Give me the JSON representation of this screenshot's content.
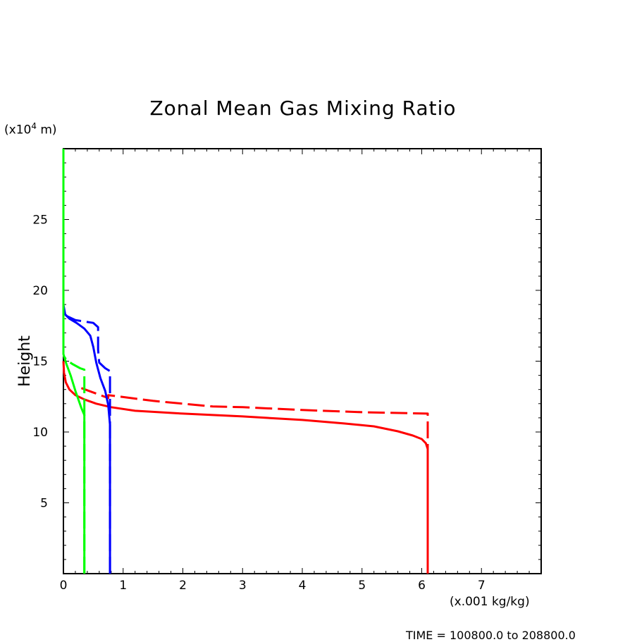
{
  "chart_data": {
    "type": "line",
    "title": "Zonal Mean Gas Mixing Ratio",
    "xlabel": "",
    "ylabel": "Height",
    "x_unit": "(x.001 kg/kg)",
    "y_unit_prefix": "(x10",
    "y_unit_exp": "4",
    "y_unit_suffix": " m)",
    "xlim": [
      0,
      8
    ],
    "ylim": [
      0,
      30
    ],
    "xticks": [
      0,
      1,
      2,
      3,
      4,
      5,
      6,
      7
    ],
    "yticks": [
      5,
      10,
      15,
      20,
      25
    ],
    "grid": false,
    "legend": "none",
    "series": [
      {
        "color": "#ff0000",
        "dash": "solid",
        "points": [
          [
            6.1,
            0
          ],
          [
            6.1,
            8
          ],
          [
            6.1,
            8.8
          ],
          [
            6.07,
            9.2
          ],
          [
            6.0,
            9.5
          ],
          [
            5.85,
            9.75
          ],
          [
            5.6,
            10.05
          ],
          [
            5.2,
            10.4
          ],
          [
            4.7,
            10.6
          ],
          [
            4.0,
            10.85
          ],
          [
            3.0,
            11.1
          ],
          [
            2.0,
            11.3
          ],
          [
            1.2,
            11.5
          ],
          [
            0.8,
            11.75
          ],
          [
            0.55,
            12.0
          ],
          [
            0.35,
            12.3
          ],
          [
            0.2,
            12.6
          ],
          [
            0.1,
            13.0
          ],
          [
            0.04,
            13.5
          ],
          [
            0.01,
            14.2
          ],
          [
            0,
            15
          ]
        ]
      },
      {
        "color": "#ff0000",
        "dash": "dashed",
        "points": [
          [
            6.1,
            0
          ],
          [
            6.1,
            11.3
          ],
          [
            5.0,
            11.4
          ],
          [
            4.0,
            11.55
          ],
          [
            3.0,
            11.75
          ],
          [
            2.5,
            11.8
          ],
          [
            1.5,
            12.2
          ],
          [
            0.75,
            12.6
          ],
          [
            0.75,
            12.4
          ],
          [
            0.3,
            13.1
          ]
        ]
      },
      {
        "color": "#0000ff",
        "dash": "solid",
        "points": [
          [
            0.78,
            0
          ],
          [
            0.78,
            10.5
          ],
          [
            0.75,
            11.9
          ],
          [
            0.7,
            12.9
          ],
          [
            0.62,
            13.8
          ],
          [
            0.55,
            14.9
          ],
          [
            0.5,
            16.0
          ],
          [
            0.45,
            16.8
          ],
          [
            0.35,
            17.3
          ],
          [
            0.22,
            17.7
          ],
          [
            0.1,
            18.0
          ],
          [
            0.03,
            18.3
          ],
          [
            0,
            19.0
          ]
        ]
      },
      {
        "color": "#0000ff",
        "dash": "dashed",
        "points": [
          [
            0.78,
            0
          ],
          [
            0.78,
            14.3
          ],
          [
            0.7,
            14.5
          ],
          [
            0.6,
            14.9
          ],
          [
            0.58,
            15.8
          ],
          [
            0.58,
            17.4
          ],
          [
            0.5,
            17.7
          ],
          [
            0.35,
            17.8
          ],
          [
            0.2,
            17.9
          ],
          [
            0.05,
            18.2
          ],
          [
            0,
            18.8
          ]
        ]
      },
      {
        "color": "#00ff00",
        "dash": "solid",
        "points": [
          [
            0.35,
            0
          ],
          [
            0.35,
            11.2
          ],
          [
            0.3,
            11.7
          ],
          [
            0.2,
            12.9
          ],
          [
            0.12,
            14.0
          ],
          [
            0.05,
            14.8
          ],
          [
            0,
            15.5
          ],
          [
            0,
            30
          ]
        ]
      },
      {
        "color": "#00ff00",
        "dash": "dashed",
        "points": [
          [
            0.35,
            0
          ],
          [
            0.35,
            14.4
          ],
          [
            0.28,
            14.5
          ],
          [
            0.15,
            14.8
          ],
          [
            0.05,
            15.1
          ],
          [
            0,
            15.4
          ]
        ]
      }
    ]
  },
  "footer": "TIME = 100800.0 to 208800.0"
}
